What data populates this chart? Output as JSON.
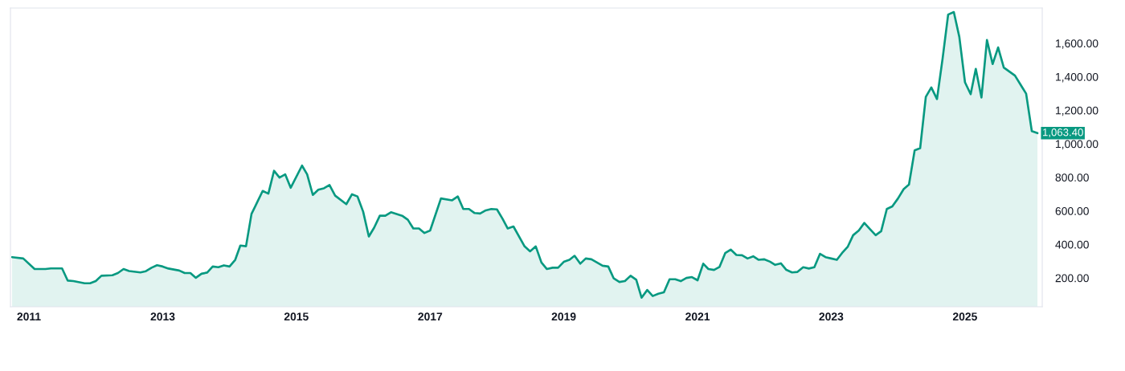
{
  "chart_data": {
    "type": "area",
    "x": [
      "2010-10",
      "2010-12",
      "2011-02",
      "2011-04",
      "2011-05",
      "2011-07",
      "2011-08",
      "2011-09",
      "2011-11",
      "2011-12",
      "2012-01",
      "2012-02",
      "2012-04",
      "2012-05",
      "2012-06",
      "2012-07",
      "2012-09",
      "2012-10",
      "2012-11",
      "2012-12",
      "2013-01",
      "2013-02",
      "2013-04",
      "2013-05",
      "2013-06",
      "2013-07",
      "2013-08",
      "2013-09",
      "2013-10",
      "2013-11",
      "2013-12",
      "2014-01",
      "2014-02",
      "2014-03",
      "2014-04",
      "2014-05",
      "2014-06",
      "2014-07",
      "2014-08",
      "2014-09",
      "2014-10",
      "2014-11",
      "2014-12",
      "2015-02",
      "2015-03",
      "2015-04",
      "2015-05",
      "2015-06",
      "2015-07",
      "2015-08",
      "2015-10",
      "2015-11",
      "2015-12",
      "2016-01",
      "2016-02",
      "2016-03",
      "2016-04",
      "2016-05",
      "2016-06",
      "2016-08",
      "2016-09",
      "2016-10",
      "2016-11",
      "2016-12",
      "2017-01",
      "2017-03",
      "2017-05",
      "2017-06",
      "2017-07",
      "2017-08",
      "2017-09",
      "2017-10",
      "2017-11",
      "2017-12",
      "2018-01",
      "2018-02",
      "2018-03",
      "2018-04",
      "2018-06",
      "2018-07",
      "2018-08",
      "2018-09",
      "2018-10",
      "2018-11",
      "2018-12",
      "2019-01",
      "2019-02",
      "2019-03",
      "2019-04",
      "2019-05",
      "2019-06",
      "2019-08",
      "2019-09",
      "2019-10",
      "2019-11",
      "2019-12",
      "2020-01",
      "2020-02",
      "2020-03",
      "2020-04",
      "2020-05",
      "2020-06",
      "2020-07",
      "2020-08",
      "2020-09",
      "2020-10",
      "2020-11",
      "2020-12",
      "2021-01",
      "2021-02",
      "2021-03",
      "2021-04",
      "2021-05",
      "2021-06",
      "2021-07",
      "2021-08",
      "2021-09",
      "2021-10",
      "2021-11",
      "2021-12",
      "2022-01",
      "2022-02",
      "2022-03",
      "2022-04",
      "2022-05",
      "2022-06",
      "2022-07",
      "2022-08",
      "2022-09",
      "2022-10",
      "2022-11",
      "2022-12",
      "2023-01",
      "2023-02",
      "2023-03",
      "2023-04",
      "2023-05",
      "2023-06",
      "2023-07",
      "2023-08",
      "2023-09",
      "2023-10",
      "2023-11",
      "2023-12",
      "2024-01",
      "2024-02",
      "2024-03",
      "2024-04",
      "2024-05",
      "2024-06",
      "2024-07",
      "2024-08",
      "2024-09",
      "2024-10",
      "2024-11",
      "2024-12",
      "2025-01",
      "2025-02",
      "2025-03",
      "2025-04",
      "2025-05",
      "2025-06",
      "2025-07",
      "2025-08",
      "2025-10",
      "2025-12",
      "2026-01",
      "2026-02"
    ],
    "series": [
      {
        "color": "#089981",
        "values": [
          324,
          316,
          253,
          253,
          257,
          257,
          184,
          181,
          168,
          168,
          181,
          213,
          216,
          229,
          253,
          241,
          233,
          240,
          261,
          276,
          268,
          256,
          244,
          229,
          229,
          201,
          225,
          232,
          268,
          264,
          275,
          268,
          308,
          393,
          389,
          582,
          651,
          719,
          703,
          839,
          799,
          818,
          738,
          870,
          818,
          695,
          726,
          735,
          754,
          691,
          640,
          699,
          686,
          595,
          447,
          500,
          571,
          571,
          592,
          571,
          547,
          495,
          495,
          468,
          483,
          674,
          663,
          686,
          611,
          611,
          587,
          584,
          603,
          611,
          609,
          552,
          495,
          507,
          388,
          359,
          388,
          292,
          253,
          261,
          261,
          296,
          308,
          332,
          285,
          316,
          311,
          273,
          268,
          197,
          176,
          181,
          213,
          189,
          82,
          128,
          92,
          106,
          114,
          192,
          192,
          181,
          200,
          205,
          186,
          285,
          253,
          248,
          266,
          348,
          369,
          337,
          335,
          316,
          329,
          308,
          311,
          297,
          278,
          287,
          248,
          233,
          236,
          264,
          256,
          264,
          344,
          324,
          316,
          308,
          348,
          385,
          455,
          483,
          528,
          491,
          455,
          479,
          611,
          627,
          674,
          730,
          757,
          961,
          974,
          1280,
          1336,
          1267,
          1511,
          1771,
          1786,
          1638,
          1367,
          1296,
          1447,
          1276,
          1619,
          1476,
          1575,
          1455,
          1407,
          1299,
          1076,
          1063.4
        ]
      }
    ],
    "xlim": [
      "2010-09-22",
      "2026-02-27"
    ],
    "xticks": [
      "2011",
      "2013",
      "2015",
      "2017",
      "2019",
      "2021",
      "2023",
      "2025"
    ],
    "ylim": [
      28,
      1810
    ],
    "yticks": [
      {
        "value": 200,
        "label": "200.00"
      },
      {
        "value": 400,
        "label": "400.00"
      },
      {
        "value": 600,
        "label": "600.00"
      },
      {
        "value": 800,
        "label": "800.00"
      },
      {
        "value": 1000,
        "label": "1,000.00"
      },
      {
        "value": 1200,
        "label": "1,200.00"
      },
      {
        "value": 1400,
        "label": "1,400.00"
      },
      {
        "value": 1600,
        "label": "1,600.00"
      }
    ],
    "annotations": [
      {
        "text": "1,063.40",
        "x": "2026-02",
        "y": 1063.4
      }
    ]
  }
}
